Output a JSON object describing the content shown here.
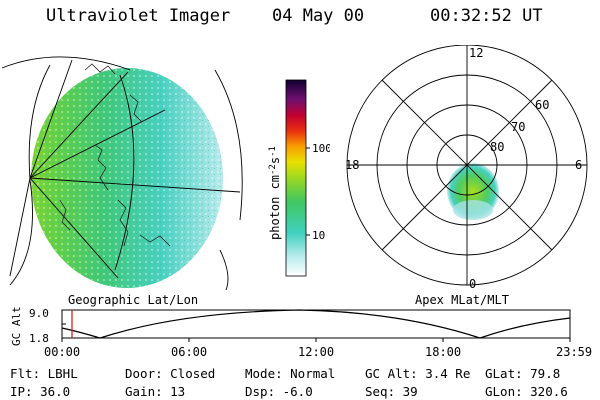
{
  "header": {
    "instrument": "Ultraviolet Imager",
    "date": "04 May 00",
    "time": "00:32:52 UT"
  },
  "colorbar": {
    "unit_label": "photon cm",
    "unit_sup1": "-2",
    "unit_mid": "s",
    "unit_sup2": "-1",
    "ticks": [
      "100",
      "10"
    ]
  },
  "geo_panel": {
    "label": "Geographic Lat/Lon"
  },
  "polar_panel": {
    "label": "Apex MLat/MLT",
    "mlt_labels": {
      "top": "12",
      "left": "18",
      "right": "6",
      "bottom": "0"
    },
    "lat_labels": [
      "60",
      "70",
      "80"
    ]
  },
  "altitude_plot": {
    "ylabel": "GC Alt",
    "yticks": [
      "9.0",
      "1.8"
    ],
    "xticks": [
      "00:00",
      "06:00",
      "12:00",
      "18:00",
      "23:59"
    ]
  },
  "status": {
    "flt": "Flt: LBHL",
    "ip": "IP: 36.0",
    "door": "Door: Closed",
    "gain": "Gain: 13",
    "mode": "Mode: Normal",
    "dsp": "Dsp:   -6.0",
    "gc_alt": "GC Alt: 3.4 Re",
    "seq": "Seq: 39",
    "glat": "GLat:  79.8",
    "glon": "GLon: 320.6"
  },
  "colors": {
    "background": "#ffffff",
    "foreground": "#000000",
    "cursor": "#d01010"
  }
}
